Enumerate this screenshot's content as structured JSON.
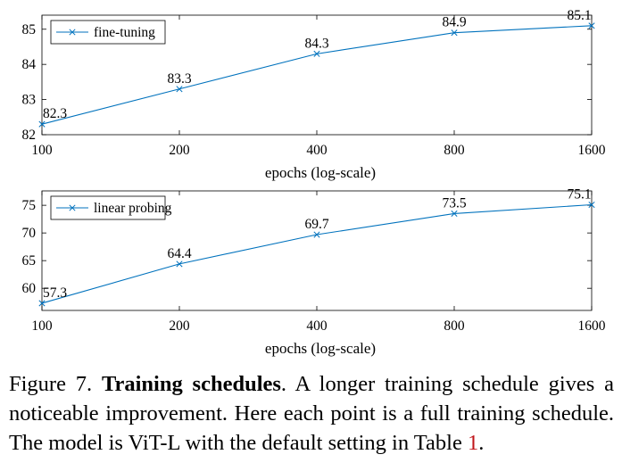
{
  "chart_data": [
    {
      "type": "line",
      "x": [
        100,
        200,
        400,
        800,
        1600
      ],
      "xscale": "log",
      "xlabel": "epochs (log-scale)",
      "xticks": [
        "100",
        "200",
        "400",
        "800",
        "1600"
      ],
      "ylim": [
        82,
        85.4
      ],
      "yticks": [
        "82",
        "83",
        "84",
        "85"
      ],
      "grid": false,
      "legend": "top-left",
      "series": [
        {
          "name": "fine-tuning",
          "values": [
            82.3,
            83.3,
            84.3,
            84.9,
            85.1
          ],
          "labels": [
            "82.3",
            "83.3",
            "84.3",
            "84.9",
            "85.1"
          ],
          "color": "#0072BD"
        }
      ]
    },
    {
      "type": "line",
      "x": [
        100,
        200,
        400,
        800,
        1600
      ],
      "xscale": "log",
      "xlabel": "epochs (log-scale)",
      "xticks": [
        "100",
        "200",
        "400",
        "800",
        "1600"
      ],
      "ylim": [
        56,
        77.6
      ],
      "yticks": [
        "60",
        "65",
        "70",
        "75"
      ],
      "grid": false,
      "legend": "top-left",
      "series": [
        {
          "name": "linear probing",
          "values": [
            57.3,
            64.4,
            69.7,
            73.5,
            75.1
          ],
          "labels": [
            "57.3",
            "64.4",
            "69.7",
            "73.5",
            "75.1"
          ],
          "color": "#0072BD"
        }
      ]
    }
  ],
  "caption": {
    "label": "Figure 7.",
    "bold": "Training schedules",
    "text": ". A longer training schedule gives a noticeable improvement. Here each point is a full training schedule. The model is ViT-L with the default setting in Table ",
    "ref": "1",
    "end": "."
  }
}
